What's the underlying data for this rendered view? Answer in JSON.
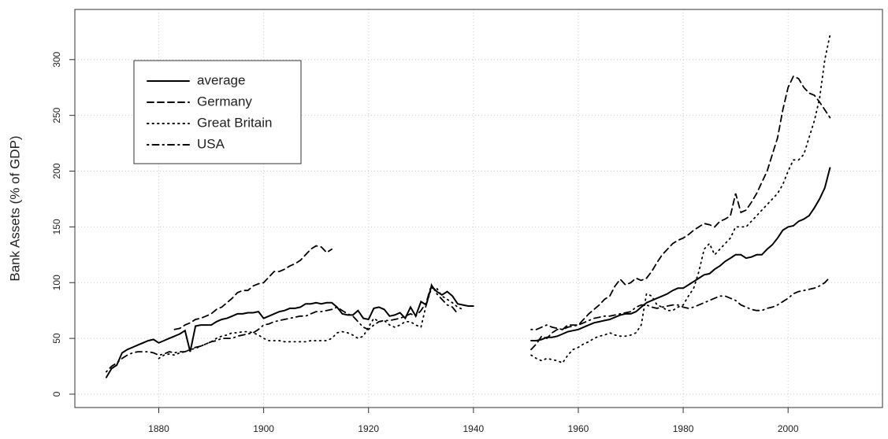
{
  "chart_data": {
    "type": "line",
    "y_label": "Bank Assets (% of GDP)",
    "x": [
      1870,
      1871,
      1872,
      1873,
      1874,
      1875,
      1876,
      1877,
      1878,
      1879,
      1880,
      1881,
      1882,
      1883,
      1884,
      1885,
      1886,
      1887,
      1888,
      1889,
      1890,
      1891,
      1892,
      1893,
      1894,
      1895,
      1896,
      1897,
      1898,
      1899,
      1900,
      1901,
      1902,
      1903,
      1904,
      1905,
      1906,
      1907,
      1908,
      1909,
      1910,
      1911,
      1912,
      1913,
      1914,
      1915,
      1916,
      1917,
      1918,
      1919,
      1920,
      1921,
      1922,
      1923,
      1924,
      1925,
      1926,
      1927,
      1928,
      1929,
      1930,
      1931,
      1932,
      1933,
      1934,
      1935,
      1936,
      1937,
      1938,
      1939,
      1940,
      1941,
      1942,
      1943,
      1944,
      1945,
      1946,
      1947,
      1948,
      1949,
      1950,
      1951,
      1952,
      1953,
      1954,
      1955,
      1956,
      1957,
      1958,
      1959,
      1960,
      1961,
      1962,
      1963,
      1964,
      1965,
      1966,
      1967,
      1968,
      1969,
      1970,
      1971,
      1972,
      1973,
      1974,
      1975,
      1976,
      1977,
      1978,
      1979,
      1980,
      1981,
      1982,
      1983,
      1984,
      1985,
      1986,
      1987,
      1988,
      1989,
      1990,
      1991,
      1992,
      1993,
      1994,
      1995,
      1996,
      1997,
      1998,
      1999,
      2000,
      2001,
      2002,
      2003,
      2004,
      2005,
      2006,
      2007,
      2008
    ],
    "series": [
      {
        "name": "average",
        "color": "#000000",
        "dash": "solid",
        "values": [
          15,
          23,
          26,
          37,
          40,
          42,
          44,
          46,
          48,
          49,
          46,
          48,
          50,
          52,
          54,
          57,
          38,
          61,
          62,
          62,
          62,
          65,
          67,
          68,
          70,
          72,
          72,
          73,
          73,
          74,
          68,
          70,
          72,
          74,
          75,
          77,
          77,
          78,
          81,
          81,
          82,
          81,
          82,
          82,
          78,
          72,
          71,
          71,
          75,
          68,
          67,
          77,
          78,
          76,
          70,
          71,
          73,
          68,
          78,
          70,
          83,
          80,
          97,
          92,
          89,
          92,
          88,
          81,
          80,
          79,
          79,
          null,
          null,
          null,
          null,
          null,
          null,
          null,
          null,
          null,
          null,
          48,
          48,
          49,
          51,
          51,
          52,
          54,
          56,
          57,
          58,
          60,
          62,
          64,
          65,
          66,
          67,
          69,
          71,
          72,
          72,
          74,
          78,
          82,
          84,
          86,
          88,
          90,
          93,
          95,
          95,
          98,
          101,
          104,
          107,
          108,
          112,
          115,
          119,
          122,
          125,
          125,
          122,
          123,
          125,
          125,
          130,
          134,
          140,
          147,
          150,
          151,
          155,
          157,
          160,
          167,
          175,
          185,
          203
        ]
      },
      {
        "name": "Germany",
        "color": "#000000",
        "dash": "dashed",
        "values": [
          null,
          null,
          null,
          null,
          null,
          null,
          null,
          null,
          null,
          null,
          null,
          null,
          null,
          58,
          59,
          62,
          64,
          67,
          68,
          70,
          72,
          76,
          78,
          82,
          86,
          91,
          93,
          93,
          97,
          99,
          100,
          105,
          110,
          110,
          112,
          115,
          117,
          120,
          125,
          130,
          133,
          132,
          127,
          130,
          null,
          null,
          null,
          null,
          null,
          null,
          null,
          null,
          null,
          null,
          null,
          null,
          null,
          null,
          null,
          null,
          null,
          null,
          null,
          null,
          null,
          null,
          null,
          null,
          null,
          null,
          null,
          null,
          null,
          null,
          null,
          null,
          null,
          null,
          null,
          null,
          null,
          40,
          45,
          52,
          50,
          55,
          58,
          58,
          62,
          62,
          62,
          67,
          72,
          76,
          80,
          85,
          88,
          97,
          103,
          98,
          100,
          104,
          102,
          104,
          110,
          118,
          125,
          130,
          135,
          138,
          140,
          143,
          147,
          150,
          153,
          152,
          150,
          155,
          157,
          160,
          180,
          163,
          165,
          172,
          180,
          190,
          200,
          215,
          230,
          255,
          275,
          285,
          283,
          275,
          270,
          268,
          262,
          255,
          248
        ]
      },
      {
        "name": "Great Britain",
        "color": "#000000",
        "dash": "dotted",
        "values": [
          null,
          null,
          null,
          null,
          null,
          null,
          null,
          null,
          null,
          null,
          32,
          35,
          36,
          35,
          37,
          38,
          40,
          41,
          43,
          45,
          47,
          50,
          52,
          53,
          55,
          55,
          56,
          56,
          55,
          53,
          50,
          48,
          48,
          48,
          47,
          47,
          47,
          47,
          47,
          48,
          48,
          48,
          48,
          50,
          55,
          56,
          55,
          53,
          50,
          52,
          60,
          68,
          65,
          66,
          62,
          60,
          62,
          65,
          65,
          62,
          60,
          80,
          95,
          95,
          88,
          85,
          82,
          78,
          76,
          null,
          null,
          null,
          null,
          null,
          null,
          null,
          null,
          null,
          null,
          null,
          null,
          35,
          32,
          30,
          32,
          31,
          30,
          28,
          35,
          40,
          42,
          45,
          47,
          50,
          52,
          53,
          55,
          53,
          52,
          52,
          53,
          55,
          62,
          90,
          88,
          80,
          78,
          75,
          75,
          78,
          80,
          88,
          95,
          110,
          130,
          135,
          125,
          130,
          135,
          140,
          150,
          150,
          150,
          155,
          160,
          165,
          170,
          175,
          180,
          188,
          200,
          210,
          210,
          215,
          230,
          245,
          265,
          300,
          322
        ]
      },
      {
        "name": "USA",
        "color": "#000000",
        "dash": "dotdash",
        "values": [
          20,
          25,
          28,
          32,
          35,
          37,
          38,
          38,
          38,
          37,
          35,
          36,
          38,
          37,
          38,
          38,
          40,
          42,
          43,
          45,
          47,
          48,
          50,
          50,
          50,
          52,
          53,
          54,
          55,
          58,
          62,
          63,
          65,
          66,
          67,
          68,
          69,
          70,
          70,
          72,
          74,
          74,
          75,
          76,
          78,
          75,
          72,
          70,
          65,
          60,
          58,
          62,
          65,
          66,
          66,
          67,
          68,
          70,
          72,
          70,
          75,
          82,
          98,
          90,
          85,
          80,
          78,
          72,
          null,
          null,
          null,
          null,
          null,
          null,
          null,
          null,
          null,
          null,
          null,
          null,
          null,
          58,
          58,
          60,
          62,
          60,
          59,
          58,
          60,
          61,
          62,
          64,
          66,
          68,
          69,
          70,
          70,
          71,
          72,
          73,
          74,
          78,
          80,
          80,
          78,
          77,
          78,
          79,
          80,
          80,
          78,
          77,
          78,
          80,
          82,
          84,
          86,
          88,
          88,
          86,
          84,
          80,
          78,
          76,
          75,
          75,
          77,
          78,
          80,
          83,
          86,
          90,
          92,
          93,
          94,
          95,
          97,
          100,
          105
        ]
      }
    ],
    "xlim": [
      1864,
      2018
    ],
    "ylim": [
      -12,
      345
    ],
    "xticks": [
      1880,
      1900,
      1920,
      1940,
      1960,
      1980,
      2000
    ],
    "yticks": [
      0,
      50,
      100,
      150,
      200,
      250,
      300
    ],
    "grid": true,
    "legend": "upper left"
  }
}
